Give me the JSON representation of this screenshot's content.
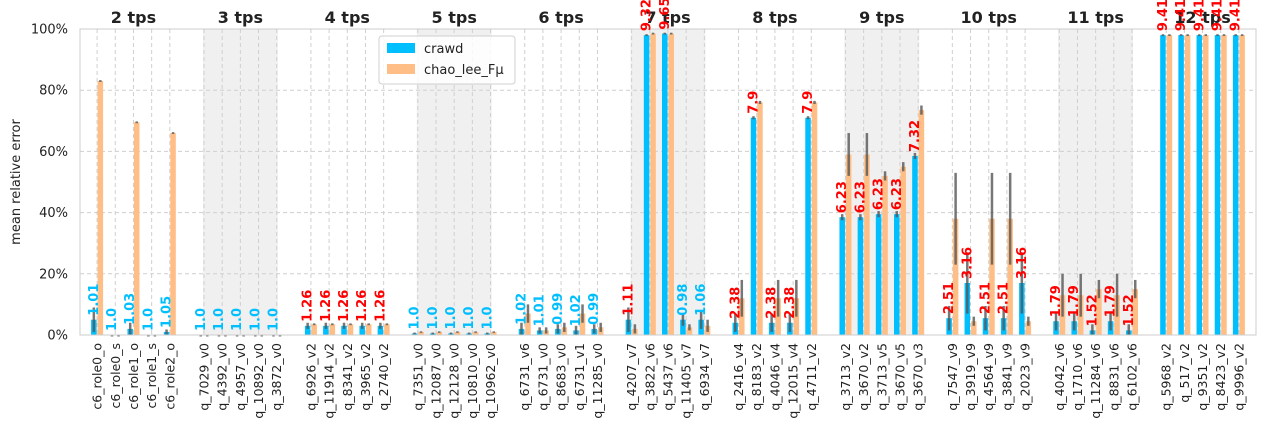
{
  "chart_data": {
    "type": "bar",
    "ylabel": "mean relative error",
    "ylim": [
      0,
      100
    ],
    "yticks": [
      "0%",
      "20%",
      "40%",
      "60%",
      "80%",
      "100%"
    ],
    "grid": true,
    "legend_position": "top-center",
    "series": [
      {
        "name": "crawd",
        "color": "#00bfff"
      },
      {
        "name": "chao_lee_Fμ",
        "color": "#ffbe86"
      }
    ],
    "annotation_colors": {
      "crawd_better": "#00bfff",
      "chao_better": "#ff0000"
    },
    "groups": [
      {
        "title": "2 tps",
        "shaded": false,
        "items": [
          {
            "label": "c6_role0_o",
            "crawd": 5,
            "crawd_err": 4,
            "chao": 83,
            "chao_err": 0.3,
            "annot": "1.01",
            "annot_color": "blue"
          },
          {
            "label": "c6_role0_s",
            "crawd": 0,
            "crawd_err": 0,
            "chao": 0,
            "chao_err": 0,
            "annot": "1.0",
            "annot_color": "blue"
          },
          {
            "label": "c6_role1_o",
            "crawd": 2,
            "crawd_err": 2,
            "chao": 69.5,
            "chao_err": 0.3,
            "annot": "1.03",
            "annot_color": "blue"
          },
          {
            "label": "c6_role1_s",
            "crawd": 0,
            "crawd_err": 0,
            "chao": 0,
            "chao_err": 0,
            "annot": "1.0",
            "annot_color": "blue"
          },
          {
            "label": "c6_role2_o",
            "crawd": 1,
            "crawd_err": 0.8,
            "chao": 66,
            "chao_err": 0.3,
            "annot": "1.05",
            "annot_color": "blue"
          }
        ]
      },
      {
        "title": "3 tps",
        "shaded": true,
        "items": [
          {
            "label": "q_7029_v0",
            "crawd": 0,
            "crawd_err": 0,
            "chao": 0,
            "chao_err": 0,
            "annot": "1.0",
            "annot_color": "blue"
          },
          {
            "label": "q_4392_v0",
            "crawd": 0,
            "crawd_err": 0,
            "chao": 0,
            "chao_err": 0,
            "annot": "1.0",
            "annot_color": "blue"
          },
          {
            "label": "q_4957_v0",
            "crawd": 0,
            "crawd_err": 0,
            "chao": 0,
            "chao_err": 0,
            "annot": "1.0",
            "annot_color": "blue"
          },
          {
            "label": "q_10892_v0",
            "crawd": 0,
            "crawd_err": 0,
            "chao": 0,
            "chao_err": 0,
            "annot": "1.0",
            "annot_color": "blue"
          },
          {
            "label": "q_3872_v0",
            "crawd": 0,
            "crawd_err": 0,
            "chao": 0,
            "chao_err": 0,
            "annot": "1.0",
            "annot_color": "blue"
          }
        ]
      },
      {
        "title": "4 tps",
        "shaded": false,
        "items": [
          {
            "label": "q_6926_v2",
            "crawd": 3,
            "crawd_err": 1,
            "chao": 3.5,
            "chao_err": 0.3,
            "annot": "1.26",
            "annot_color": "red"
          },
          {
            "label": "q_11914_v2",
            "crawd": 3,
            "crawd_err": 1,
            "chao": 3.5,
            "chao_err": 0.3,
            "annot": "1.26",
            "annot_color": "red"
          },
          {
            "label": "q_8341_v2",
            "crawd": 3,
            "crawd_err": 1,
            "chao": 3.5,
            "chao_err": 0.3,
            "annot": "1.26",
            "annot_color": "red"
          },
          {
            "label": "q_3965_v2",
            "crawd": 3,
            "crawd_err": 1,
            "chao": 3.5,
            "chao_err": 0.3,
            "annot": "1.26",
            "annot_color": "red"
          },
          {
            "label": "q_2740_v2",
            "crawd": 3,
            "crawd_err": 1,
            "chao": 3.5,
            "chao_err": 0.3,
            "annot": "1.26",
            "annot_color": "red"
          }
        ]
      },
      {
        "title": "5 tps",
        "shaded": true,
        "items": [
          {
            "label": "q_7351_v0",
            "crawd": 0.5,
            "crawd_err": 0.3,
            "chao": 1,
            "chao_err": 0.2,
            "annot": "1.0",
            "annot_color": "blue"
          },
          {
            "label": "q_12087_v0",
            "crawd": 0.5,
            "crawd_err": 0.3,
            "chao": 1,
            "chao_err": 0.2,
            "annot": "1.0",
            "annot_color": "blue"
          },
          {
            "label": "q_12128_v0",
            "crawd": 0.5,
            "crawd_err": 0.3,
            "chao": 1,
            "chao_err": 0.2,
            "annot": "1.0",
            "annot_color": "blue"
          },
          {
            "label": "q_10810_v0",
            "crawd": 0.5,
            "crawd_err": 0.3,
            "chao": 1,
            "chao_err": 0.2,
            "annot": "1.0",
            "annot_color": "blue"
          },
          {
            "label": "q_10962_v0",
            "crawd": 0.5,
            "crawd_err": 0.3,
            "chao": 1,
            "chao_err": 0.2,
            "annot": "1.0",
            "annot_color": "blue"
          }
        ]
      },
      {
        "title": "6 tps",
        "shaded": false,
        "items": [
          {
            "label": "q_6731_v6",
            "crawd": 2,
            "crawd_err": 2,
            "chao": 7,
            "chao_err": 3,
            "annot": "1.02",
            "annot_color": "blue"
          },
          {
            "label": "q_6731_v0",
            "crawd": 1.5,
            "crawd_err": 1,
            "chao": 1.5,
            "chao_err": 1,
            "annot": "1.01",
            "annot_color": "blue"
          },
          {
            "label": "q_8683_v0",
            "crawd": 2,
            "crawd_err": 1.5,
            "chao": 2.5,
            "chao_err": 1.5,
            "annot": "0.99",
            "annot_color": "blue"
          },
          {
            "label": "q_6731_v1",
            "crawd": 1.5,
            "crawd_err": 1.5,
            "chao": 7,
            "chao_err": 3,
            "annot": "1.02",
            "annot_color": "blue"
          },
          {
            "label": "q_11285_v0",
            "crawd": 2,
            "crawd_err": 1.5,
            "chao": 2.5,
            "chao_err": 1.5,
            "annot": "0.99",
            "annot_color": "blue"
          }
        ]
      },
      {
        "title": "7 tps",
        "shaded": true,
        "items": [
          {
            "label": "q_4207_v7",
            "crawd": 5,
            "crawd_err": 4,
            "chao": 2,
            "chao_err": 1.5,
            "annot": "1.11",
            "annot_color": "red"
          },
          {
            "label": "q_3822_v6",
            "crawd": 98,
            "crawd_err": 0.3,
            "chao": 98.5,
            "chao_err": 0.3,
            "annot": "9.32",
            "annot_color": "red"
          },
          {
            "label": "q_5437_v6",
            "crawd": 98.5,
            "crawd_err": 0.3,
            "chao": 98.5,
            "chao_err": 0.3,
            "annot": "9.65",
            "annot_color": "red"
          },
          {
            "label": "q_11405_v7",
            "crawd": 5,
            "crawd_err": 2,
            "chao": 2.5,
            "chao_err": 1,
            "annot": "0.98",
            "annot_color": "blue"
          },
          {
            "label": "q_6934_v7",
            "crawd": 5,
            "crawd_err": 3,
            "chao": 3,
            "chao_err": 2,
            "annot": "1.06",
            "annot_color": "blue"
          }
        ]
      },
      {
        "title": "8 tps",
        "shaded": false,
        "items": [
          {
            "label": "q_2416_v4",
            "crawd": 4,
            "crawd_err": 3,
            "chao": 12,
            "chao_err": 6,
            "annot": "2.38",
            "annot_color": "red"
          },
          {
            "label": "q_8183_v2",
            "crawd": 71,
            "crawd_err": 0.5,
            "chao": 76,
            "chao_err": 0.5,
            "annot": "7.9",
            "annot_color": "red"
          },
          {
            "label": "q_4046_v4",
            "crawd": 4,
            "crawd_err": 3,
            "chao": 12,
            "chao_err": 6,
            "annot": "2.38",
            "annot_color": "red"
          },
          {
            "label": "q_12015_v4",
            "crawd": 4,
            "crawd_err": 3,
            "chao": 12,
            "chao_err": 6,
            "annot": "2.38",
            "annot_color": "red"
          },
          {
            "label": "q_4711_v2",
            "crawd": 71,
            "crawd_err": 0.5,
            "chao": 76,
            "chao_err": 0.5,
            "annot": "7.9",
            "annot_color": "red"
          }
        ]
      },
      {
        "title": "9 tps",
        "shaded": true,
        "items": [
          {
            "label": "q_3713_v2",
            "crawd": 38.5,
            "crawd_err": 1,
            "chao": 59,
            "chao_err": 7,
            "annot": "6.23",
            "annot_color": "red"
          },
          {
            "label": "q_3670_v2",
            "crawd": 38.5,
            "crawd_err": 1,
            "chao": 59,
            "chao_err": 7,
            "annot": "6.23",
            "annot_color": "red"
          },
          {
            "label": "q_3713_v5",
            "crawd": 39.5,
            "crawd_err": 1,
            "chao": 52,
            "chao_err": 1.5,
            "annot": "6.23",
            "annot_color": "red"
          },
          {
            "label": "q_3670_v5",
            "crawd": 39.5,
            "crawd_err": 1,
            "chao": 55,
            "chao_err": 1.5,
            "annot": "6.23",
            "annot_color": "red"
          },
          {
            "label": "q_3670_v3",
            "crawd": 58.5,
            "crawd_err": 1,
            "chao": 73.5,
            "chao_err": 1.5,
            "annot": "7.32",
            "annot_color": "red"
          }
        ]
      },
      {
        "title": "10 tps",
        "shaded": false,
        "items": [
          {
            "label": "q_7547_v9",
            "crawd": 5.5,
            "crawd_err": 4,
            "chao": 38,
            "chao_err": 15,
            "annot": "2.51",
            "annot_color": "red"
          },
          {
            "label": "q_3919_v9",
            "crawd": 17,
            "crawd_err": 10,
            "chao": 4.5,
            "chao_err": 1.5,
            "annot": "3.16",
            "annot_color": "red"
          },
          {
            "label": "q_4564_v9",
            "crawd": 5.5,
            "crawd_err": 4,
            "chao": 38,
            "chao_err": 15,
            "annot": "2.51",
            "annot_color": "red"
          },
          {
            "label": "q_3841_v9",
            "crawd": 5.5,
            "crawd_err": 4,
            "chao": 38,
            "chao_err": 15,
            "annot": "2.51",
            "annot_color": "red"
          },
          {
            "label": "q_2023_v9",
            "crawd": 17,
            "crawd_err": 10,
            "chao": 4.5,
            "chao_err": 1.5,
            "annot": "3.16",
            "annot_color": "red"
          }
        ]
      },
      {
        "title": "11 tps",
        "shaded": true,
        "items": [
          {
            "label": "q_4042_v6",
            "crawd": 4.5,
            "crawd_err": 3,
            "chao": 13,
            "chao_err": 7,
            "annot": "1.79",
            "annot_color": "red"
          },
          {
            "label": "q_1710_v6",
            "crawd": 4.5,
            "crawd_err": 3,
            "chao": 13,
            "chao_err": 7,
            "annot": "1.79",
            "annot_color": "red"
          },
          {
            "label": "q_11284_v6",
            "crawd": 1.5,
            "crawd_err": 2,
            "chao": 15,
            "chao_err": 3,
            "annot": "1.52",
            "annot_color": "red"
          },
          {
            "label": "q_8831_v6",
            "crawd": 4.5,
            "crawd_err": 3,
            "chao": 13,
            "chao_err": 7,
            "annot": "1.79",
            "annot_color": "red"
          },
          {
            "label": "q_6102_v6",
            "crawd": 1.5,
            "crawd_err": 2,
            "chao": 15,
            "chao_err": 3,
            "annot": "1.52",
            "annot_color": "red"
          }
        ]
      },
      {
        "title": "12 tps",
        "shaded": false,
        "items": [
          {
            "label": "q_5968_v2",
            "crawd": 98,
            "crawd_err": 0.3,
            "chao": 98,
            "chao_err": 0.3,
            "annot": "9.41",
            "annot_color": "red"
          },
          {
            "label": "q_517_v2",
            "crawd": 98,
            "crawd_err": 0.3,
            "chao": 98,
            "chao_err": 0.3,
            "annot": "9.41",
            "annot_color": "red"
          },
          {
            "label": "q_9351_v2",
            "crawd": 98,
            "crawd_err": 0.3,
            "chao": 98,
            "chao_err": 0.3,
            "annot": "9.41",
            "annot_color": "red"
          },
          {
            "label": "q_8423_v2",
            "crawd": 98,
            "crawd_err": 0.3,
            "chao": 98,
            "chao_err": 0.3,
            "annot": "9.41",
            "annot_color": "red"
          },
          {
            "label": "q_9996_v2",
            "crawd": 98,
            "crawd_err": 0.3,
            "chao": 98,
            "chao_err": 0.3,
            "annot": "9.41",
            "annot_color": "red"
          }
        ]
      }
    ]
  }
}
